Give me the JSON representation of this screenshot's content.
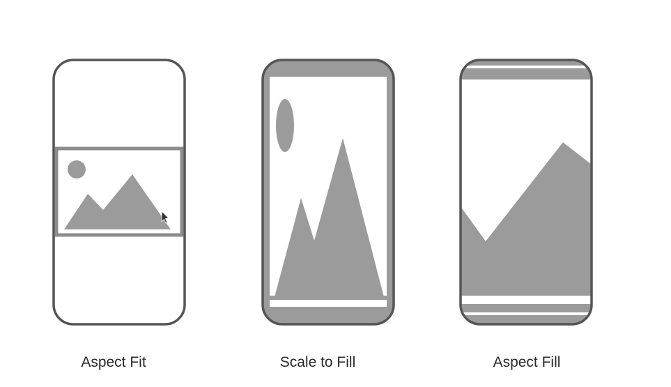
{
  "colors": {
    "background": "#ffffff",
    "frame_stroke": "#555555",
    "image_fill": "#9b9b9b",
    "image_border": "#8c8c8c",
    "caption_text": "#2a2a2a"
  },
  "modes": [
    {
      "id": "aspect-fit",
      "caption": "Aspect Fit",
      "icon": "landscape-image-icon"
    },
    {
      "id": "scale-to-fill",
      "caption": "Scale to Fill",
      "icon": "landscape-image-icon"
    },
    {
      "id": "aspect-fill",
      "caption": "Aspect Fill",
      "icon": "landscape-image-icon"
    }
  ],
  "cursor": {
    "icon": "mouse-pointer-icon"
  }
}
